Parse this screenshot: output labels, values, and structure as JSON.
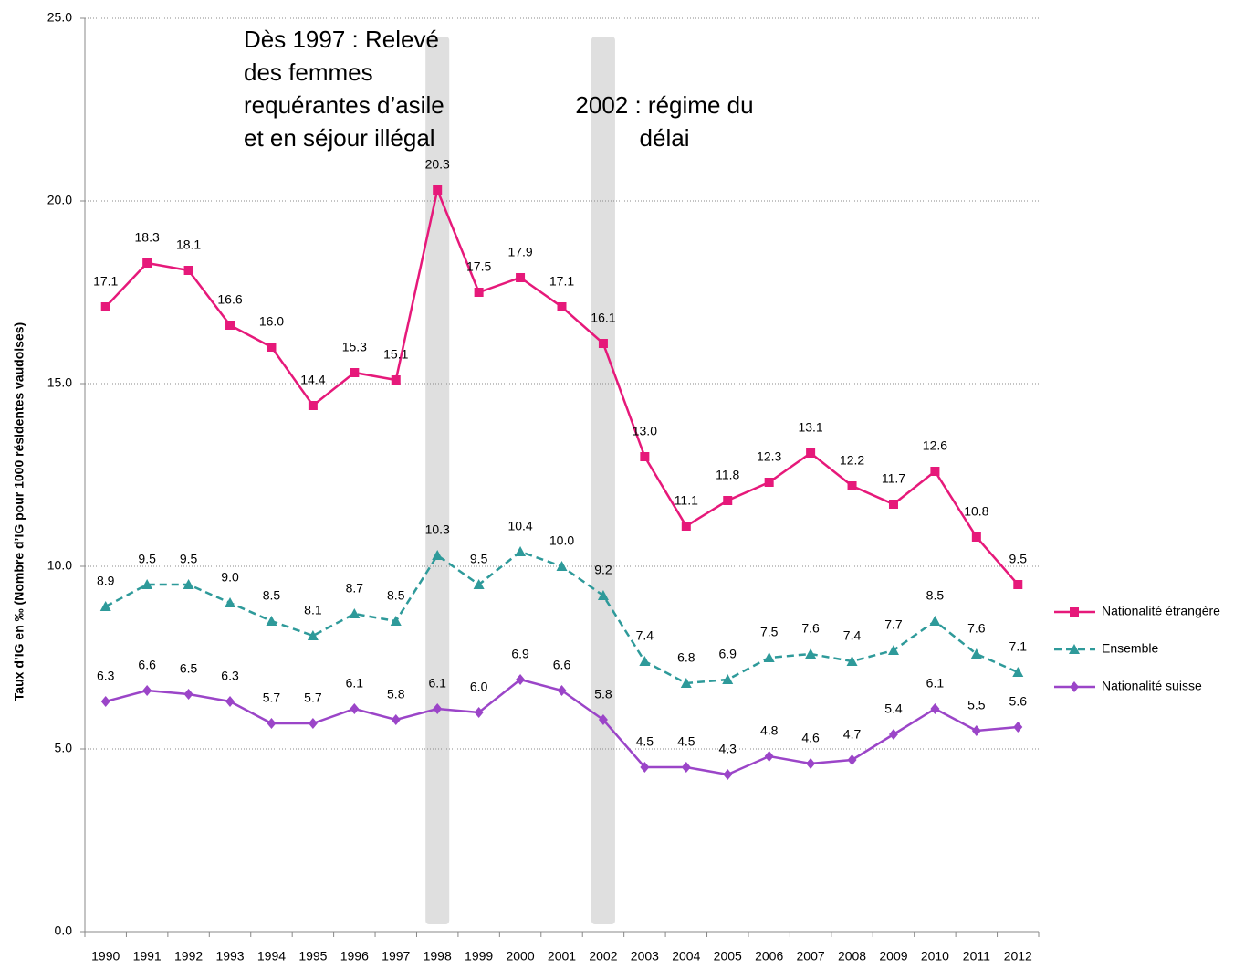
{
  "chart_data": {
    "type": "line",
    "y_label": "Taux d’IG en ‰ (Nombre d’IG pour 1000 résidentes vaudoises)",
    "annotations": [
      {
        "lines": [
          "Dès 1997 : Relevé",
          "des femmes",
          "requérantes d’asile",
          "et en séjour illégal"
        ]
      },
      {
        "lines": [
          "2002 : régime du",
          "délai"
        ]
      }
    ],
    "categories": [
      "1990",
      "1991",
      "1992",
      "1993",
      "1994",
      "1995",
      "1996",
      "1997",
      "1998",
      "1999",
      "2000",
      "2001",
      "2002",
      "2003",
      "2004",
      "2005",
      "2006",
      "2007",
      "2008",
      "2009",
      "2010",
      "2011",
      "2012"
    ],
    "series": [
      {
        "name": "Nationalité étrangère",
        "color": "#e6197a",
        "marker": "square",
        "dash": false,
        "values": [
          17.1,
          18.3,
          18.1,
          16.6,
          16.0,
          14.4,
          15.3,
          15.1,
          20.3,
          17.5,
          17.9,
          17.1,
          16.1,
          13.0,
          11.1,
          11.8,
          12.3,
          13.1,
          12.2,
          11.7,
          12.6,
          10.8,
          9.5
        ],
        "value_labels": [
          "17.1",
          "18.3",
          "18.1",
          "16.6",
          "16.0",
          "14.4",
          "15.3",
          "15.1",
          "20.3",
          "17.5",
          "17.9",
          "17.1",
          "16.1",
          "13.0",
          "11.1",
          "11.8",
          "12.3",
          "13.1",
          "12.2",
          "11.7",
          "12.6",
          "10.8",
          "9.5"
        ]
      },
      {
        "name": "Ensemble",
        "color": "#2e9a9a",
        "marker": "triangle",
        "dash": true,
        "values": [
          8.9,
          9.5,
          9.5,
          9.0,
          8.5,
          8.1,
          8.7,
          8.5,
          10.3,
          9.5,
          10.4,
          10.0,
          9.2,
          7.4,
          6.8,
          6.9,
          7.5,
          7.6,
          7.4,
          7.7,
          8.5,
          7.6,
          7.1
        ],
        "value_labels": [
          "8.9",
          "9.5",
          "9.5",
          "9.0",
          "8.5",
          "8.1",
          "8.7",
          "8.5",
          "10.3",
          "9.5",
          "10.4",
          "10.0",
          "9.2",
          "7.4",
          "6.8",
          "6.9",
          "7.5",
          "7.6",
          "7.4",
          "7.7",
          "8.5",
          "7.6",
          "7.1"
        ]
      },
      {
        "name": "Nationalité suisse",
        "color": "#9b45c8",
        "marker": "diamond",
        "dash": false,
        "values": [
          6.3,
          6.6,
          6.5,
          6.3,
          5.7,
          5.7,
          6.1,
          5.8,
          6.1,
          6.0,
          6.9,
          6.6,
          5.8,
          4.5,
          4.5,
          4.3,
          4.8,
          4.6,
          4.7,
          5.4,
          6.1,
          5.5,
          5.6
        ],
        "value_labels": [
          "6.3",
          "6.6",
          "6.5",
          "6.3",
          "5.7",
          "5.7",
          "6.1",
          "5.8",
          "6.1",
          "6.0",
          "6.9",
          "6.6",
          "5.8",
          "4.5",
          "4.5",
          "4.3",
          "4.8",
          "4.6",
          "4.7",
          "5.4",
          "6.1",
          "5.5",
          "5.6"
        ]
      }
    ],
    "ylim": [
      0,
      25
    ],
    "yticks": [
      {
        "value": 0,
        "label": "0.0"
      },
      {
        "value": 5,
        "label": "5.0"
      },
      {
        "value": 10,
        "label": "10.0"
      },
      {
        "value": 15,
        "label": "15.0"
      },
      {
        "value": 20,
        "label": "20.0"
      },
      {
        "value": 25,
        "label": "25.0"
      }
    ],
    "grid": true,
    "legend": "right"
  }
}
